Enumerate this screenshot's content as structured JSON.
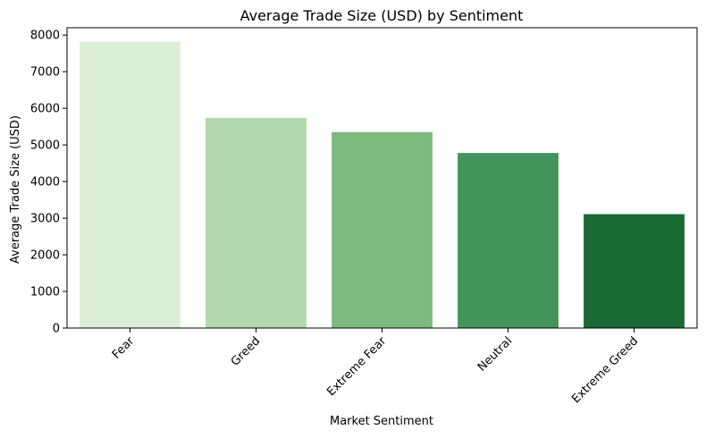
{
  "chart_data": {
    "type": "bar",
    "title": "Average Trade Size (USD) by Sentiment",
    "xlabel": "Market Sentiment",
    "ylabel": "Average Trade Size (USD)",
    "categories": [
      "Fear",
      "Greed",
      "Extreme Fear",
      "Neutral",
      "Extreme Greed"
    ],
    "values": [
      7820,
      5740,
      5350,
      4780,
      3110
    ],
    "colors": [
      "#ddefd9",
      "#b3d8b0",
      "#7eba80",
      "#43945a",
      "#1a6a36"
    ],
    "ylim": [
      0,
      8200
    ],
    "yticks": [
      0,
      1000,
      2000,
      3000,
      4000,
      5000,
      6000,
      7000,
      8000
    ],
    "grid": false,
    "legend": "none"
  }
}
